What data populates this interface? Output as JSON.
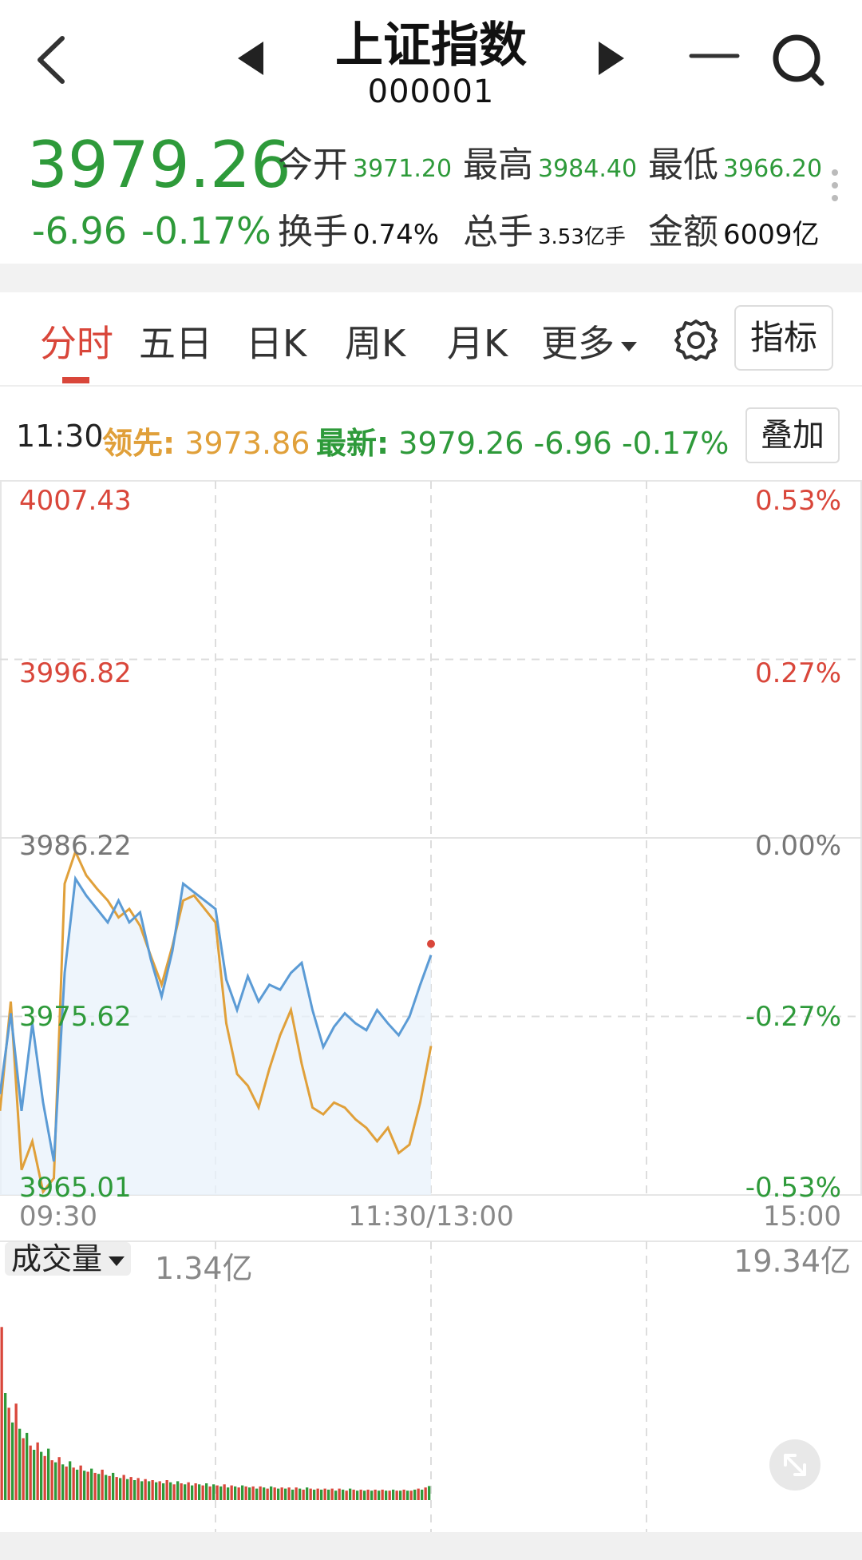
{
  "header": {
    "title": "上证指数",
    "code": "000001"
  },
  "quote": {
    "price": "3979.26",
    "change": "-6.96",
    "change_pct": "-0.17%",
    "open_label": "今开",
    "open": "3971.20",
    "high_label": "最高",
    "high": "3984.40",
    "low_label": "最低",
    "low": "3966.20",
    "turnover_label": "换手",
    "turnover": "0.74%",
    "volume_label": "总手",
    "volume": "3.53亿手",
    "amount_label": "金额",
    "amount": "6009亿",
    "up_color": "#d9463a",
    "down_color": "#2e9a3a"
  },
  "tabs": {
    "items": [
      "分时",
      "五日",
      "日K",
      "周K",
      "月K",
      "更多"
    ],
    "active": "分时",
    "indicator_button": "指标"
  },
  "info": {
    "time": "11:30",
    "lead_label": "领先:",
    "lead_value": "3973.86",
    "latest_label": "最新:",
    "latest_value": "3979.26",
    "latest_change": "-6.96",
    "latest_pct": "-0.17%",
    "overlay_button": "叠加"
  },
  "volume_panel": {
    "label": "成交量",
    "current": "1.34亿",
    "max": "19.34亿"
  },
  "chart_data": [
    {
      "type": "line",
      "title": "",
      "y_left_ticks": [
        "4007.43",
        "3996.82",
        "3986.22",
        "3975.62",
        "3965.01"
      ],
      "y_right_ticks": [
        "0.53%",
        "0.27%",
        "0.00%",
        "-0.27%",
        "-0.53%"
      ],
      "x_ticks": [
        "09:30",
        "11:30/13:00",
        "15:00"
      ],
      "ylim": [
        3965.01,
        4007.43
      ],
      "x_range_minutes": [
        0,
        240
      ],
      "series": [
        {
          "color": "#5b9bd5",
          "x": [
            0,
            3,
            6,
            9,
            12,
            15,
            18,
            21,
            24,
            27,
            30,
            33,
            36,
            39,
            42,
            45,
            48,
            51,
            54,
            57,
            60,
            63,
            66,
            69,
            72,
            75,
            78,
            81,
            84,
            87,
            90,
            93,
            96,
            99,
            102,
            105,
            108,
            111,
            114,
            117,
            120
          ],
          "values": [
            3971.0,
            3975.8,
            3970.0,
            3975.2,
            3970.5,
            3967.0,
            3978.2,
            3983.8,
            3982.8,
            3982.0,
            3981.2,
            3982.5,
            3981.2,
            3981.8,
            3979.0,
            3976.8,
            3979.5,
            3983.5,
            3983.0,
            3982.5,
            3982.0,
            3977.8,
            3976.0,
            3978.0,
            3976.5,
            3977.5,
            3977.2,
            3978.2,
            3978.8,
            3976.0,
            3973.8,
            3975.0,
            3975.8,
            3975.2,
            3974.8,
            3976.0,
            3975.2,
            3974.5,
            3975.6,
            3977.5,
            3979.26
          ]
        },
        {
          "color": "#e0a03a",
          "x": [
            0,
            3,
            6,
            9,
            12,
            15,
            18,
            21,
            24,
            27,
            30,
            33,
            36,
            39,
            42,
            45,
            48,
            51,
            54,
            57,
            60,
            63,
            66,
            69,
            72,
            75,
            78,
            81,
            84,
            87,
            90,
            93,
            96,
            99,
            102,
            105,
            108,
            111,
            114,
            117,
            120
          ],
          "values": [
            3970.0,
            3976.5,
            3966.5,
            3968.2,
            3965.2,
            3966.0,
            3983.5,
            3985.4,
            3984.0,
            3983.2,
            3982.5,
            3981.5,
            3982.0,
            3981.0,
            3979.2,
            3977.5,
            3979.8,
            3982.5,
            3982.8,
            3982.0,
            3981.2,
            3975.2,
            3972.2,
            3971.5,
            3970.2,
            3972.5,
            3974.5,
            3976.0,
            3972.8,
            3970.2,
            3969.8,
            3970.5,
            3970.2,
            3969.5,
            3969.0,
            3968.2,
            3969.0,
            3967.5,
            3968.0,
            3970.5,
            3973.86
          ]
        }
      ]
    },
    {
      "type": "bar",
      "title": "",
      "ylim": [
        0,
        19.34
      ],
      "unit": "亿",
      "x_range_minutes": [
        0,
        240
      ],
      "values": [
        16.5,
        10.2,
        8.8,
        7.4,
        9.2,
        6.8,
        5.9,
        6.4,
        5.2,
        4.8,
        5.5,
        4.6,
        4.2,
        4.9,
        3.8,
        3.6,
        4.1,
        3.4,
        3.2,
        3.7,
        3.1,
        2.9,
        3.3,
        2.8,
        2.7,
        3.0,
        2.6,
        2.5,
        2.9,
        2.4,
        2.3,
        2.6,
        2.2,
        2.1,
        2.4,
        2.0,
        2.2,
        1.9,
        2.1,
        1.8,
        2.0,
        1.8,
        1.9,
        1.7,
        1.8,
        1.6,
        1.9,
        1.7,
        1.5,
        1.8,
        1.6,
        1.5,
        1.7,
        1.4,
        1.6,
        1.5,
        1.4,
        1.6,
        1.3,
        1.5,
        1.4,
        1.3,
        1.5,
        1.2,
        1.4,
        1.3,
        1.2,
        1.4,
        1.3,
        1.2,
        1.3,
        1.1,
        1.3,
        1.2,
        1.1,
        1.3,
        1.2,
        1.1,
        1.2,
        1.1,
        1.2,
        1.0,
        1.2,
        1.1,
        1.0,
        1.2,
        1.1,
        1.0,
        1.1,
        1.0,
        1.1,
        1.0,
        1.1,
        0.9,
        1.1,
        1.0,
        0.9,
        1.1,
        1.0,
        0.9,
        1.0,
        0.9,
        1.0,
        0.9,
        1.0,
        0.9,
        1.0,
        0.9,
        0.9,
        1.0,
        0.9,
        0.9,
        1.0,
        0.9,
        0.9,
        1.0,
        1.1,
        1.0,
        1.2,
        1.34
      ],
      "colors": [
        "#d9463a",
        "#2e9a3a"
      ]
    }
  ]
}
